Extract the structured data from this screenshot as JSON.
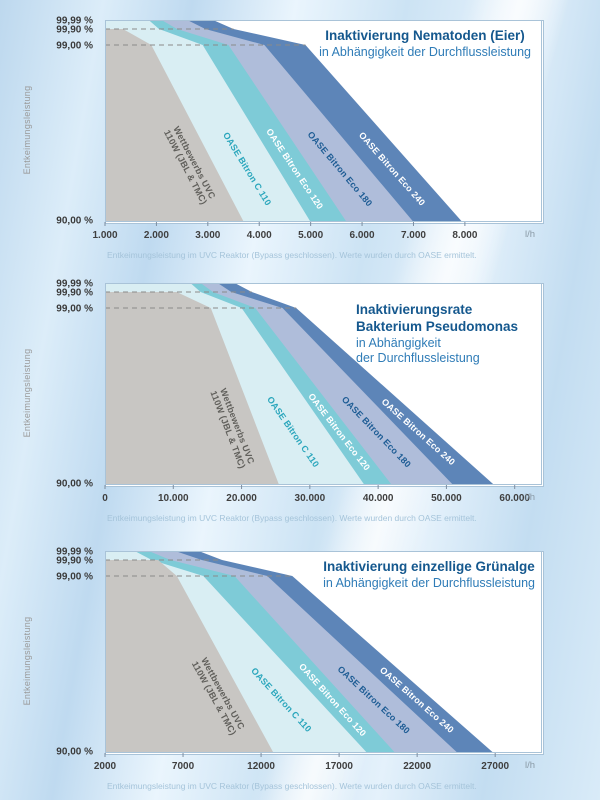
{
  "ui": {
    "y_axis_title": "Entkeimungsleistung",
    "footer_note": "Entkeimungsleistung im UVC Reaktor (Bypass geschlossen). Werte wurden durch OASE ermittelt.",
    "x_unit": "l/h"
  },
  "y_axis": {
    "levels": [
      "99,99 %",
      "99,90 %",
      "99,00 %",
      "90,00 %"
    ]
  },
  "colors": {
    "title_bold": "#15588e",
    "title_sub": "#2f7cb7",
    "dashed_line": "#8a8a8a",
    "plot_frame": "#a9c3d8",
    "tick_text": "#3f3f3f",
    "unit_text": "#8a9aa6"
  },
  "chart_data": [
    {
      "type": "area",
      "title_bold_lines": [
        "Inaktivierung Nematoden (Eier)"
      ],
      "title_sub_lines": [
        "in Abhängigkeit der Durchflussleistung"
      ],
      "xlabel_unit": "l/h",
      "ylabel": "Entkeimungsleistung",
      "y_levels_pct": [
        99.99,
        99.9,
        99.0,
        90.0
      ],
      "xmin": 1000,
      "xmax": 9500,
      "ticks": [
        1000,
        2000,
        3000,
        4000,
        5000,
        6000,
        7000,
        8000
      ],
      "tick_labels": [
        "1.000",
        "2.000",
        "3.000",
        "4.000",
        "5.000",
        "6.000",
        "7.000",
        "8.000"
      ],
      "series": [
        {
          "name": "Wettbewerbs UVC 110W (JBL & TMC)",
          "label_lines": [
            "Wettbewerbs UVC",
            "110W (JBL & TMC)"
          ],
          "fill": "#c8c6c3",
          "label_color": "#605f5b",
          "plateau_level": "99.90",
          "plateau_until": 1350,
          "x_9900": 1900,
          "x_9000": 3700
        },
        {
          "name": "OASE Bitron C 110",
          "label_lines": [
            "OASE Bitron C 110"
          ],
          "fill": "#d9eef3",
          "label_color": "#2aa6bc",
          "plateau_level": "99.99",
          "plateau_until": 1850,
          "x_9990": 2050,
          "x_9900": 2900,
          "x_9000": 5000
        },
        {
          "name": "OASE Bitron Eco 120",
          "label_lines": [
            "OASE Bitron Eco 120"
          ],
          "fill": "#7ecbd7",
          "label_color": "#ffffff",
          "plateau_level": "99.99",
          "plateau_until": 2100,
          "x_9990": 2400,
          "x_9900": 3400,
          "x_9000": 5700
        },
        {
          "name": "OASE Bitron Eco 180",
          "label_lines": [
            "OASE Bitron Eco 180"
          ],
          "fill": "#afbdda",
          "label_color": "#1d5c94",
          "plateau_level": "99.99",
          "plateau_until": 2600,
          "x_9990": 2950,
          "x_9900": 4100,
          "x_9000": 7000
        },
        {
          "name": "OASE Bitron Eco 240",
          "label_lines": [
            "OASE Bitron Eco 240"
          ],
          "fill": "#5d85b8",
          "label_color": "#ffffff",
          "plateau_level": "99.99",
          "plateau_until": 3100,
          "x_9990": 3500,
          "x_9900": 4900,
          "x_9000": 7950
        }
      ]
    },
    {
      "type": "area",
      "title_bold_lines": [
        "Inaktivierungsrate",
        "Bakterium Pseudomonas"
      ],
      "title_sub_lines": [
        "in Abhängigkeit",
        "der Durchflussleistung"
      ],
      "xlabel_unit": "l/h",
      "ylabel": "Entkeimungsleistung",
      "y_levels_pct": [
        99.99,
        99.9,
        99.0,
        90.0
      ],
      "xmin": 0,
      "xmax": 64000,
      "ticks": [
        0,
        10000,
        20000,
        30000,
        40000,
        50000,
        60000
      ],
      "tick_labels": [
        "0",
        "10.000",
        "20.000",
        "30.000",
        "40.000",
        "50.000",
        "60.000"
      ],
      "series": [
        {
          "name": "Wettbewerbs UVC 110W (JBL & TMC)",
          "label_lines": [
            "Wettbewerbs UVC",
            "110W (JBL & TMC)"
          ],
          "fill": "#c8c6c3",
          "label_color": "#605f5b",
          "plateau_level": "99.90",
          "plateau_until": 10500,
          "x_9900": 15500,
          "x_9000": 25500
        },
        {
          "name": "OASE Bitron C 110",
          "label_lines": [
            "OASE Bitron C 110"
          ],
          "fill": "#d9eef3",
          "label_color": "#2aa6bc",
          "plateau_level": "99.99",
          "plateau_until": 12500,
          "x_9990": 14000,
          "x_9900": 20000,
          "x_9000": 38000
        },
        {
          "name": "OASE Bitron Eco 120",
          "label_lines": [
            "OASE Bitron Eco 120"
          ],
          "fill": "#7ecbd7",
          "label_color": "#ffffff",
          "plateau_level": "99.99",
          "plateau_until": 14000,
          "x_9990": 15800,
          "x_9900": 22000,
          "x_9000": 42000
        },
        {
          "name": "OASE Bitron Eco 180",
          "label_lines": [
            "OASE Bitron Eco 180"
          ],
          "fill": "#afbdda",
          "label_color": "#1d5c94",
          "plateau_level": "99.99",
          "plateau_until": 16500,
          "x_9990": 18500,
          "x_9900": 26000,
          "x_9000": 51000
        },
        {
          "name": "OASE Bitron Eco 240",
          "label_lines": [
            "OASE Bitron Eco 240"
          ],
          "fill": "#5d85b8",
          "label_color": "#ffffff",
          "plateau_level": "99.99",
          "plateau_until": 19000,
          "x_9990": 21500,
          "x_9900": 28000,
          "x_9000": 57000
        }
      ]
    },
    {
      "type": "area",
      "title_bold_lines": [
        "Inaktivierung einzellige Grünalge"
      ],
      "title_sub_lines": [
        "in Abhängigkeit der Durchflussleistung"
      ],
      "xlabel_unit": "l/h",
      "ylabel": "Entkeimungsleistung",
      "y_levels_pct": [
        99.99,
        99.9,
        99.0,
        90.0
      ],
      "xmin": 2000,
      "xmax": 30000,
      "ticks": [
        2000,
        7000,
        12000,
        17000,
        22000,
        27000
      ],
      "tick_labels": [
        "2000",
        "7000",
        "12000",
        "17000",
        "22000",
        "27000"
      ],
      "series": [
        {
          "name": "Wettbewerbs UVC 110W (JBL & TMC)",
          "label_lines": [
            "Wettbewerbs UVC",
            "110W (JBL & TMC)"
          ],
          "fill": "#c8c6c3",
          "label_color": "#605f5b",
          "plateau_level": "99.90",
          "plateau_until": 5400,
          "x_9900": 6600,
          "x_9000": 12800
        },
        {
          "name": "OASE Bitron C 110",
          "label_lines": [
            "OASE Bitron C 110"
          ],
          "fill": "#d9eef3",
          "label_color": "#2aa6bc",
          "plateau_level": "99.99",
          "plateau_until": 3900,
          "x_9990": 5000,
          "x_9900": 8300,
          "x_9000": 18800
        },
        {
          "name": "OASE Bitron Eco 120",
          "label_lines": [
            "OASE Bitron Eco 120"
          ],
          "fill": "#7ecbd7",
          "label_color": "#ffffff",
          "plateau_level": "99.99",
          "plateau_until": 4800,
          "x_9990": 6200,
          "x_9900": 10300,
          "x_9000": 20600
        },
        {
          "name": "OASE Bitron Eco 180",
          "label_lines": [
            "OASE Bitron Eco 180"
          ],
          "fill": "#afbdda",
          "label_color": "#1d5c94",
          "plateau_level": "99.99",
          "plateau_until": 6500,
          "x_9990": 8200,
          "x_9900": 12400,
          "x_9000": 24600
        },
        {
          "name": "OASE Bitron Eco 240",
          "label_lines": [
            "OASE Bitron Eco 240"
          ],
          "fill": "#5d85b8",
          "label_color": "#ffffff",
          "plateau_level": "99.99",
          "plateau_until": 8000,
          "x_9990": 9500,
          "x_9900": 14000,
          "x_9000": 26900
        }
      ]
    }
  ]
}
